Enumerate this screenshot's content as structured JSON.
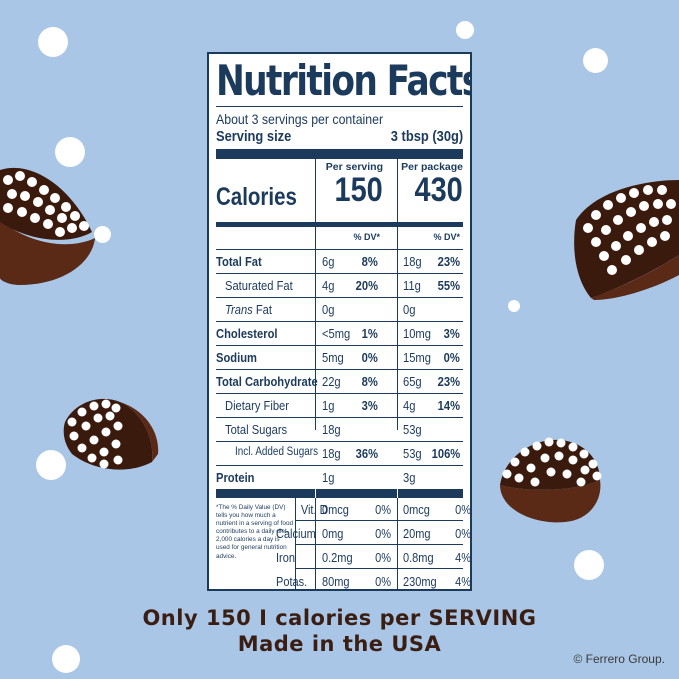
{
  "label": {
    "title": "Nutrition Facts",
    "servings_per_container": "About 3 servings per container",
    "serving_size_label": "Serving size",
    "serving_size_value": "3 tbsp (30g)",
    "calories_label": "Calories",
    "per_serving_header": "Per serving",
    "per_package_header": "Per package",
    "calories_serving": "150",
    "calories_package": "430",
    "dv_header": "% DV*",
    "rows": [
      {
        "name": "Total Fat",
        "bold": true,
        "indent": 0,
        "serving_amount": "6g",
        "serving_dv": "8%",
        "package_amount": "18g",
        "package_dv": "23%"
      },
      {
        "name": "Saturated Fat",
        "bold": false,
        "indent": 1,
        "serving_amount": "4g",
        "serving_dv": "20%",
        "package_amount": "11g",
        "package_dv": "55%"
      },
      {
        "name_italic": "Trans",
        "name": " Fat",
        "bold": false,
        "indent": 1,
        "serving_amount": "0g",
        "serving_dv": "",
        "package_amount": "0g",
        "package_dv": ""
      },
      {
        "name": "Cholesterol",
        "bold": true,
        "indent": 0,
        "serving_amount": "<5mg",
        "serving_dv": "1%",
        "package_amount": "10mg",
        "package_dv": "3%"
      },
      {
        "name": "Sodium",
        "bold": true,
        "indent": 0,
        "serving_amount": "5mg",
        "serving_dv": "0%",
        "package_amount": "15mg",
        "package_dv": "0%"
      },
      {
        "name": "Total Carbohydrate",
        "bold": true,
        "indent": 0,
        "serving_amount": "22g",
        "serving_dv": "8%",
        "package_amount": "65g",
        "package_dv": "23%"
      },
      {
        "name": "Dietary Fiber",
        "bold": false,
        "indent": 1,
        "serving_amount": "1g",
        "serving_dv": "3%",
        "package_amount": "4g",
        "package_dv": "14%"
      },
      {
        "name": "Total Sugars",
        "bold": false,
        "indent": 1,
        "serving_amount": "18g",
        "serving_dv": "",
        "package_amount": "53g",
        "package_dv": ""
      },
      {
        "name": "Incl. Added Sugars",
        "bold": false,
        "indent": 2,
        "serving_amount": "18g",
        "serving_dv": "36%",
        "package_amount": "53g",
        "package_dv": "106%"
      },
      {
        "name": "Protein",
        "bold": true,
        "indent": 0,
        "serving_amount": "1g",
        "serving_dv": "",
        "package_amount": "3g",
        "package_dv": ""
      }
    ],
    "footnote": "*The % Daily Value (DV) tells you how much a nutrient in a serving of food contributes to a daily diet. 2,000 calories a day is used for general nutrition advice.",
    "vitamins": [
      {
        "name": "Vit. D",
        "serving_amount": "0mcg",
        "serving_dv": "0%",
        "package_amount": "0mcg",
        "package_dv": "0%"
      },
      {
        "name": "Calcium",
        "serving_amount": "0mg",
        "serving_dv": "0%",
        "package_amount": "20mg",
        "package_dv": "0%"
      },
      {
        "name": "Iron",
        "serving_amount": "0.2mg",
        "serving_dv": "0%",
        "package_amount": "0.8mg",
        "package_dv": "4%"
      },
      {
        "name": "Potas.",
        "serving_amount": "80mg",
        "serving_dv": "0%",
        "package_amount": "230mg",
        "package_dv": "4%"
      }
    ]
  },
  "tagline_1": "Only 150 I calories per SERVING",
  "tagline_2": "Made in the USA",
  "copyright": "© Ferrero Group.",
  "colors": {
    "background": "#a9c6e6",
    "label_ink": "#1b3a5c",
    "tagline": "#3a1e14",
    "chocolate": "#5a2a17"
  },
  "icons": [
    "chocolate-candy-icon",
    "sprinkle-dot-icon"
  ]
}
